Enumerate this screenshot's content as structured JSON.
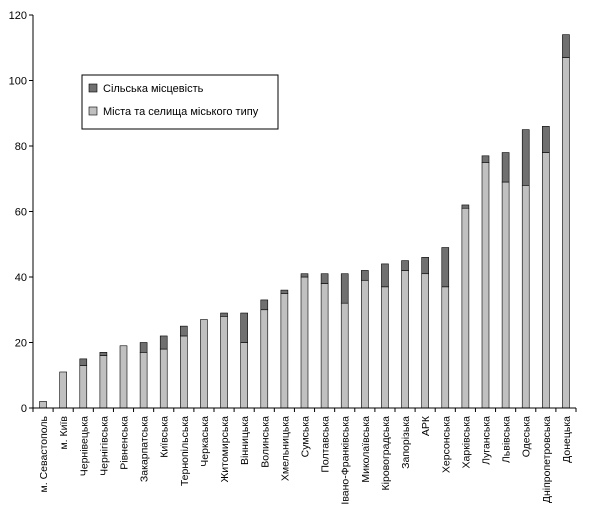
{
  "chart_data": {
    "type": "bar",
    "stacked": true,
    "categories": [
      "м. Севастополь",
      "м. Київ",
      "Чернівецька",
      "Чернігівська",
      "Рівненська",
      "Закарпатська",
      "Київська",
      "Тернопільська",
      "Черкаська",
      "Житомирська",
      "Вінницька",
      "Волинська",
      "Хмельницька",
      "Сумська",
      "Полтавська",
      "Івано-Франківська",
      "Миколаївська",
      "Кіровоградська",
      "Запорізька",
      "АРК",
      "Херсонська",
      "Харківська",
      "Луганська",
      "Львівська",
      "Одеська",
      "Дніпропетровська",
      "Донецька"
    ],
    "series": [
      {
        "name": "Міста та селища міського типу",
        "color": "#c0c0c0",
        "values": [
          2,
          11,
          13,
          16,
          19,
          17,
          18,
          22,
          27,
          28,
          20,
          30,
          35,
          40,
          38,
          32,
          39,
          37,
          42,
          41,
          37,
          61,
          75,
          69,
          68,
          78,
          107
        ]
      },
      {
        "name": "Сільська місцевість",
        "color": "#707070",
        "values": [
          0,
          0,
          2,
          1,
          0,
          3,
          4,
          3,
          0,
          1,
          9,
          3,
          1,
          1,
          3,
          9,
          3,
          7,
          3,
          5,
          12,
          1,
          2,
          9,
          17,
          8,
          7
        ]
      }
    ],
    "ylim": [
      0,
      120
    ],
    "yticks": [
      0,
      20,
      40,
      60,
      80,
      100,
      120
    ],
    "grid": false,
    "legend_position": "top-left",
    "legend": [
      "Сільська місцевість",
      "Міста та селища міського типу"
    ],
    "title": "",
    "xlabel": "",
    "ylabel": ""
  }
}
